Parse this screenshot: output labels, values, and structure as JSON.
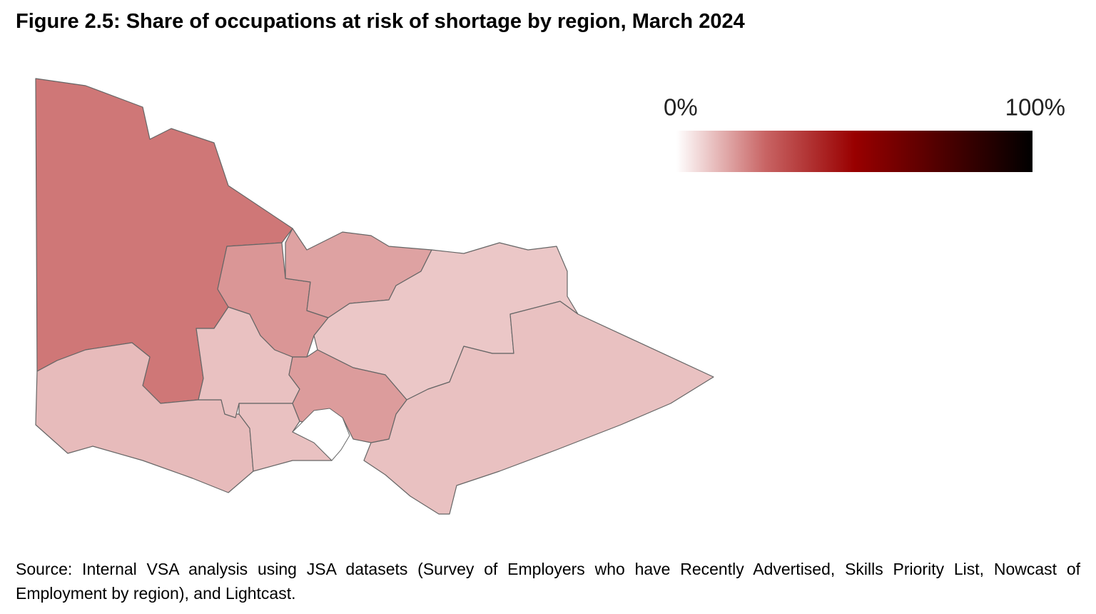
{
  "chart_data": {
    "type": "choropleth",
    "title": "Figure 2.5: Share of occupations at risk of shortage by region, March 2024",
    "values": [
      22,
      11,
      10,
      10,
      17,
      15,
      9,
      10,
      16
    ],
    "colorlim": [
      0,
      100
    ],
    "colorticks": [
      {
        "value": 0,
        "label": "0%"
      },
      {
        "value": 100,
        "label": "100%"
      }
    ],
    "colorscale": [
      {
        "value": 0,
        "color": "#ffffff"
      },
      {
        "value": 25,
        "color": "#c86464"
      },
      {
        "value": 50,
        "color": "#990000"
      },
      {
        "value": 100,
        "color": "#000000"
      }
    ],
    "border_color": "#666666",
    "source": "Source: Internal VSA analysis using JSA datasets (Survey of Employers who have Recently Advertised, Skills Priority List, Nowcast of Employment by region), and Lightcast."
  }
}
